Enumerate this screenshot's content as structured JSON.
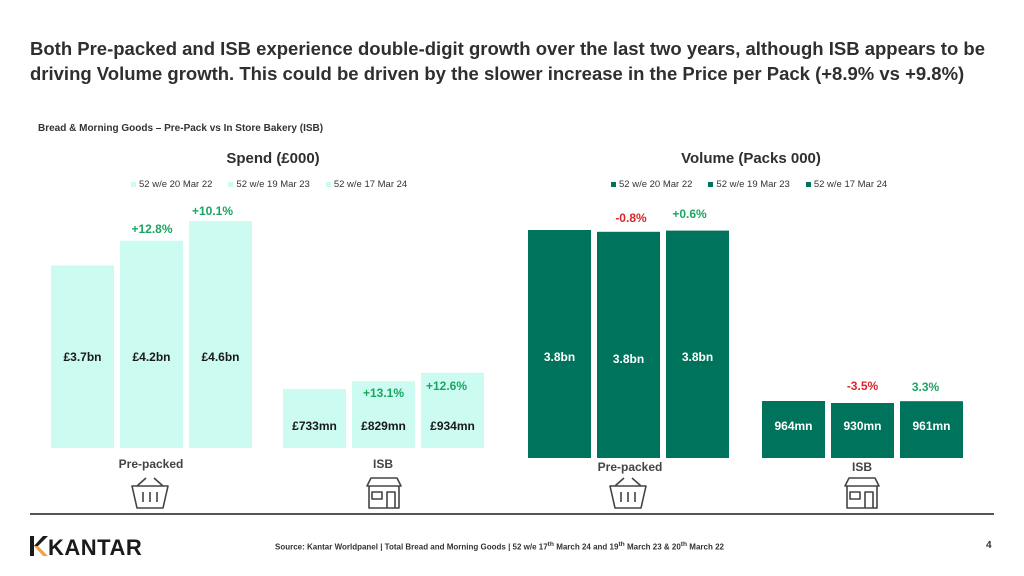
{
  "slide": {
    "title": "Both Pre-packed and ISB experience double-digit growth over the last two years, although ISB appears to be driving Volume growth. This could be driven by the slower increase in the Price per Pack (+8.9% vs +9.8%)",
    "subtitle": "Bread & Morning Goods – Pre-Pack vs In Store Bakery (ISB)",
    "source_prefix": "Source: Kantar Worldpanel | Total Bread and Morning Goods | 52 w/e 17",
    "sup1": "th",
    "source_mid1": " March 24 and 19",
    "sup2": "th",
    "source_mid2": " March 23 & 20",
    "sup3": "th",
    "source_suffix": " March 22",
    "page_number": "4",
    "logo_text": "KANTAR"
  },
  "colors": {
    "spend_bar": "#ccfbf1",
    "spend_bar_edge": "#b6f0e3",
    "volume_bar": "#00735c",
    "growth_green": "#1aa563",
    "decline_red": "#d9262c",
    "label_dark": "#1a1a1a",
    "label_light": "#ffffff"
  },
  "icons": [
    "basket-icon",
    "storefront-icon"
  ],
  "chart_data": [
    {
      "type": "bar",
      "title": "Spend (£000)",
      "legend": [
        "52 w/e 20 Mar 22",
        "52 w/e 19 Mar 23",
        "52 w/e 17 Mar 24"
      ],
      "categories": [
        "Pre-packed",
        "ISB"
      ],
      "series": [
        {
          "name": "52 w/e 20 Mar 22",
          "values": [
            3700,
            733
          ],
          "labels": [
            "£3.7bn",
            "£733mn"
          ]
        },
        {
          "name": "52 w/e 19 Mar 23",
          "values": [
            4200,
            829
          ],
          "labels": [
            "£4.2bn",
            "£829mn"
          ]
        },
        {
          "name": "52 w/e 17 Mar 24",
          "values": [
            4600,
            934
          ],
          "labels": [
            "£4.6bn",
            "£934mn"
          ]
        }
      ],
      "changes": [
        [
          "+12.8%",
          "+10.1%"
        ],
        [
          "+13.1%",
          "+12.6%"
        ]
      ],
      "change_sign": [
        [
          "pos",
          "pos"
        ],
        [
          "pos",
          "pos"
        ]
      ],
      "ylim": [
        0,
        4600
      ]
    },
    {
      "type": "bar",
      "title": "Volume (Packs 000)",
      "legend": [
        "52 w/e 20 Mar 22",
        "52 w/e 19 Mar 23",
        "52 w/e 17 Mar 24"
      ],
      "categories": [
        "Pre-packed",
        "ISB"
      ],
      "series": [
        {
          "name": "52 w/e 20 Mar 22",
          "values": [
            3800,
            964
          ],
          "labels": [
            "3.8bn",
            "964mn"
          ]
        },
        {
          "name": "52 w/e 19 Mar 23",
          "values": [
            3770,
            930
          ],
          "labels": [
            "3.8bn",
            "930mn"
          ]
        },
        {
          "name": "52 w/e 17 Mar 24",
          "values": [
            3790,
            961
          ],
          "labels": [
            "3.8bn",
            "961mn"
          ]
        }
      ],
      "changes": [
        [
          "-0.8%",
          "+0.6%"
        ],
        [
          "-3.5%",
          "3.3%"
        ]
      ],
      "change_sign": [
        [
          "neg",
          "pos"
        ],
        [
          "neg",
          "pos"
        ]
      ],
      "ylim": [
        0,
        3800
      ]
    }
  ]
}
